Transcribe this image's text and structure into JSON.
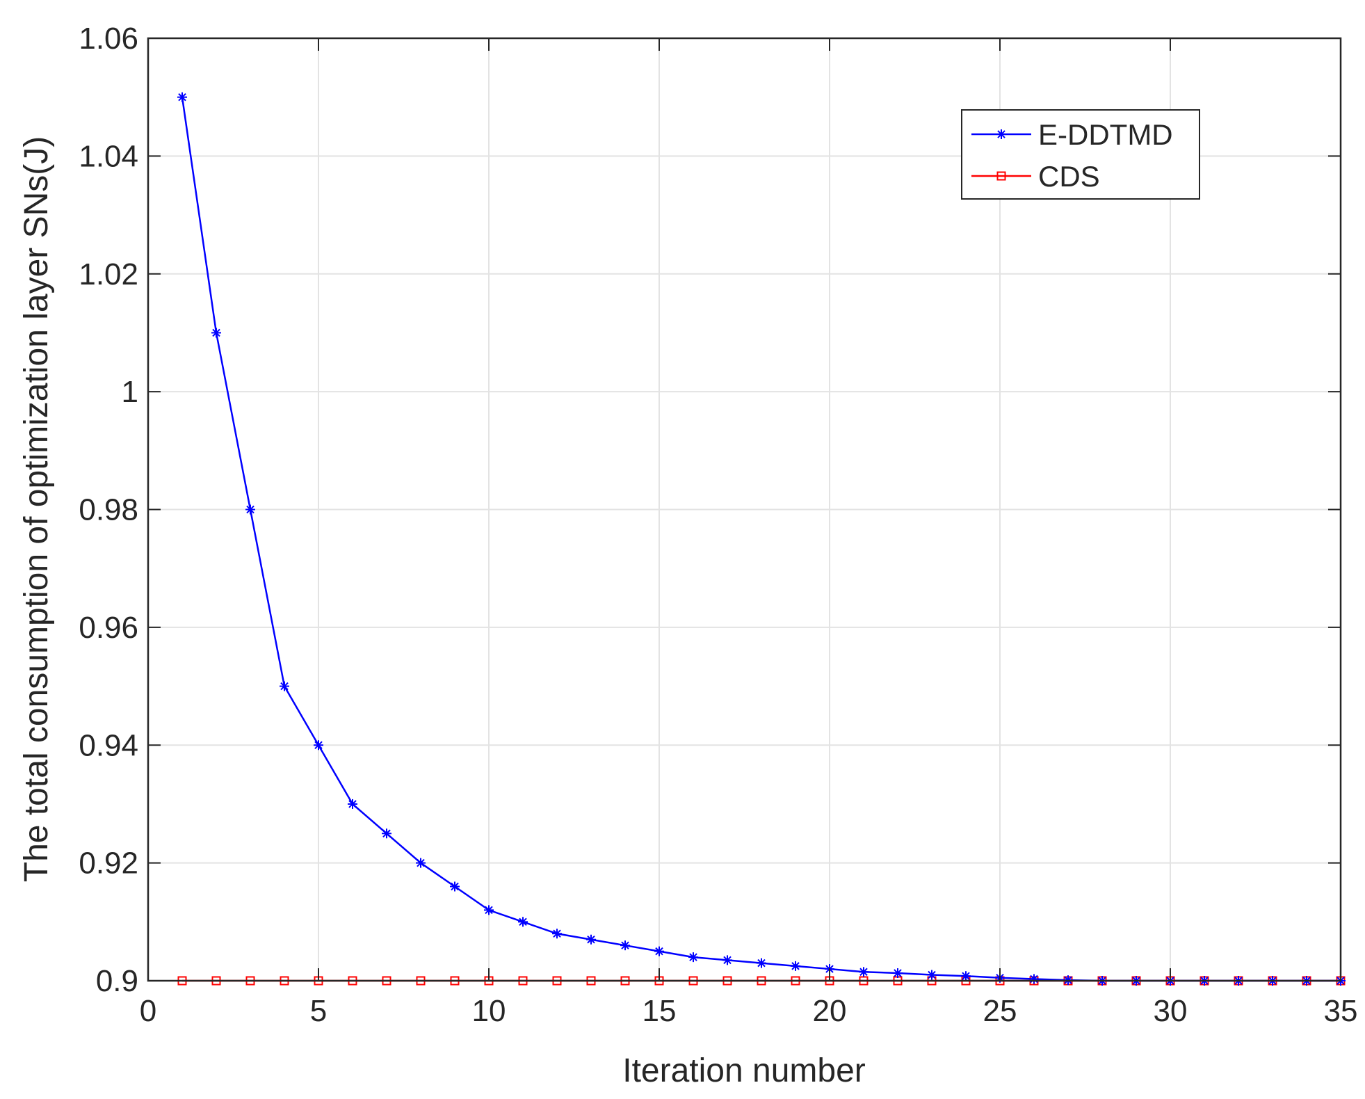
{
  "chart_data": {
    "type": "line",
    "title": "",
    "xlabel": "Iteration number",
    "ylabel": "The total consumption of optimization layer SNs(J)",
    "xlim": [
      0,
      35
    ],
    "ylim": [
      0.9,
      1.06
    ],
    "xticks": [
      0,
      5,
      10,
      15,
      20,
      25,
      30,
      35
    ],
    "xtick_labels": [
      "0",
      "5",
      "10",
      "15",
      "20",
      "25",
      "30",
      "35"
    ],
    "yticks": [
      0.9,
      0.92,
      0.94,
      0.96,
      0.98,
      1.0,
      1.02,
      1.04,
      1.06
    ],
    "ytick_labels": [
      "0.9",
      "0.92",
      "0.94",
      "0.96",
      "0.98",
      "1",
      "1.02",
      "1.04",
      "1.06"
    ],
    "grid": true,
    "legend_position": "top-right",
    "x": [
      1,
      2,
      3,
      4,
      5,
      6,
      7,
      8,
      9,
      10,
      11,
      12,
      13,
      14,
      15,
      16,
      17,
      18,
      19,
      20,
      21,
      22,
      23,
      24,
      25,
      26,
      27,
      28,
      29,
      30,
      31,
      32,
      33,
      34,
      35
    ],
    "series": [
      {
        "name": "E-DDTMD",
        "color": "#0000ff",
        "marker": "asterisk",
        "values": [
          1.05,
          1.01,
          0.98,
          0.95,
          0.94,
          0.93,
          0.925,
          0.92,
          0.916,
          0.912,
          0.91,
          0.908,
          0.907,
          0.906,
          0.905,
          0.904,
          0.9035,
          0.903,
          0.9025,
          0.902,
          0.9015,
          0.9013,
          0.901,
          0.9008,
          0.9005,
          0.9003,
          0.9001,
          0.9,
          0.9,
          0.9,
          0.9,
          0.9,
          0.9,
          0.9,
          0.9
        ]
      },
      {
        "name": "CDS",
        "color": "#ff0000",
        "marker": "square",
        "values": [
          0.9,
          0.9,
          0.9,
          0.9,
          0.9,
          0.9,
          0.9,
          0.9,
          0.9,
          0.9,
          0.9,
          0.9,
          0.9,
          0.9,
          0.9,
          0.9,
          0.9,
          0.9,
          0.9,
          0.9,
          0.9,
          0.9,
          0.9,
          0.9,
          0.9,
          0.9,
          0.9,
          0.9,
          0.9,
          0.9,
          0.9,
          0.9,
          0.9,
          0.9,
          0.9
        ]
      }
    ]
  }
}
